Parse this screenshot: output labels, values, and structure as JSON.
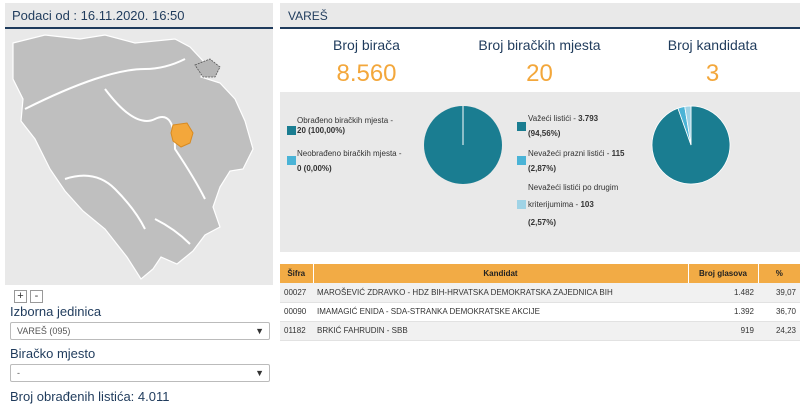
{
  "left": {
    "header": "Podaci od : 16.11.2020. 16:50",
    "zoom_in": "+",
    "zoom_out": "-",
    "unit_label": "Izborna jedinica",
    "unit_value": "VAREŠ (095)",
    "station_label": "Biračko mjesto",
    "station_value": "-",
    "processed_text": "Broj obrađenih listića: 4.011"
  },
  "right": {
    "header": "VAREŠ",
    "stats": [
      {
        "label": "Broj birača",
        "value": "8.560"
      },
      {
        "label": "Broj biračkih mjesta",
        "value": "20"
      },
      {
        "label": "Broj kandidata",
        "value": "3"
      }
    ],
    "stations_legend": {
      "processed_line1": "Obrađeno biračkih mjesta -",
      "processed_line2": "20 (100,00%)",
      "unprocessed_line1": "Neobrađeno biračkih mjesta -",
      "unprocessed_line2": "0 (0,00%)"
    },
    "ballots_legend": {
      "valid_line1_a": "Važeći listići - ",
      "valid_line1_b": "3.793",
      "valid_line2": "(94,56%)",
      "blank_line1_a": "Nevažeći prazni listići - ",
      "blank_line1_b": "115",
      "blank_line2": "(2,87%)",
      "other_line1": "Nevažeći listići po drugim",
      "other_line2_a": "kriterijumima - ",
      "other_line2_b": "103",
      "other_line3": "(2,57%)"
    },
    "colors": {
      "processed": "#1a7d91",
      "unprocessed": "#4ab3d6",
      "valid": "#1a7d91",
      "blank": "#4ab3d6",
      "other": "#9fd3e6",
      "accent_orange": "#f3a73b",
      "navy": "#1f3b5c"
    },
    "table": {
      "headers": {
        "code": "Šifra",
        "name": "Kandidat",
        "votes": "Broj glasova",
        "pct": "%"
      },
      "rows": [
        {
          "code": "00027",
          "name": "MAROŠEVIĆ ZDRAVKO - HDZ BIH-HRVATSKA DEMOKRATSKA ZAJEDNICA BIH",
          "votes": "1.482",
          "pct": "39,07"
        },
        {
          "code": "00090",
          "name": "IMAMAGIĆ ENIDA - SDA-STRANKA DEMOKRATSKE AKCIJE",
          "votes": "1.392",
          "pct": "36,70"
        },
        {
          "code": "01182",
          "name": "BRKIĆ FAHRUDIN - SBB",
          "votes": "919",
          "pct": "24,23"
        }
      ]
    }
  },
  "chart_data": [
    {
      "type": "pie",
      "categories": [
        "Obrađeno biračkih mjesta",
        "Neobrađeno biračkih mjesta"
      ],
      "values": [
        20,
        0
      ],
      "percent": [
        100.0,
        0.0
      ]
    },
    {
      "type": "pie",
      "categories": [
        "Važeći listići",
        "Nevažeći prazni listići",
        "Nevažeći listići po drugim kriterijumima"
      ],
      "values": [
        3793,
        115,
        103
      ],
      "percent": [
        94.56,
        2.87,
        2.57
      ]
    }
  ]
}
